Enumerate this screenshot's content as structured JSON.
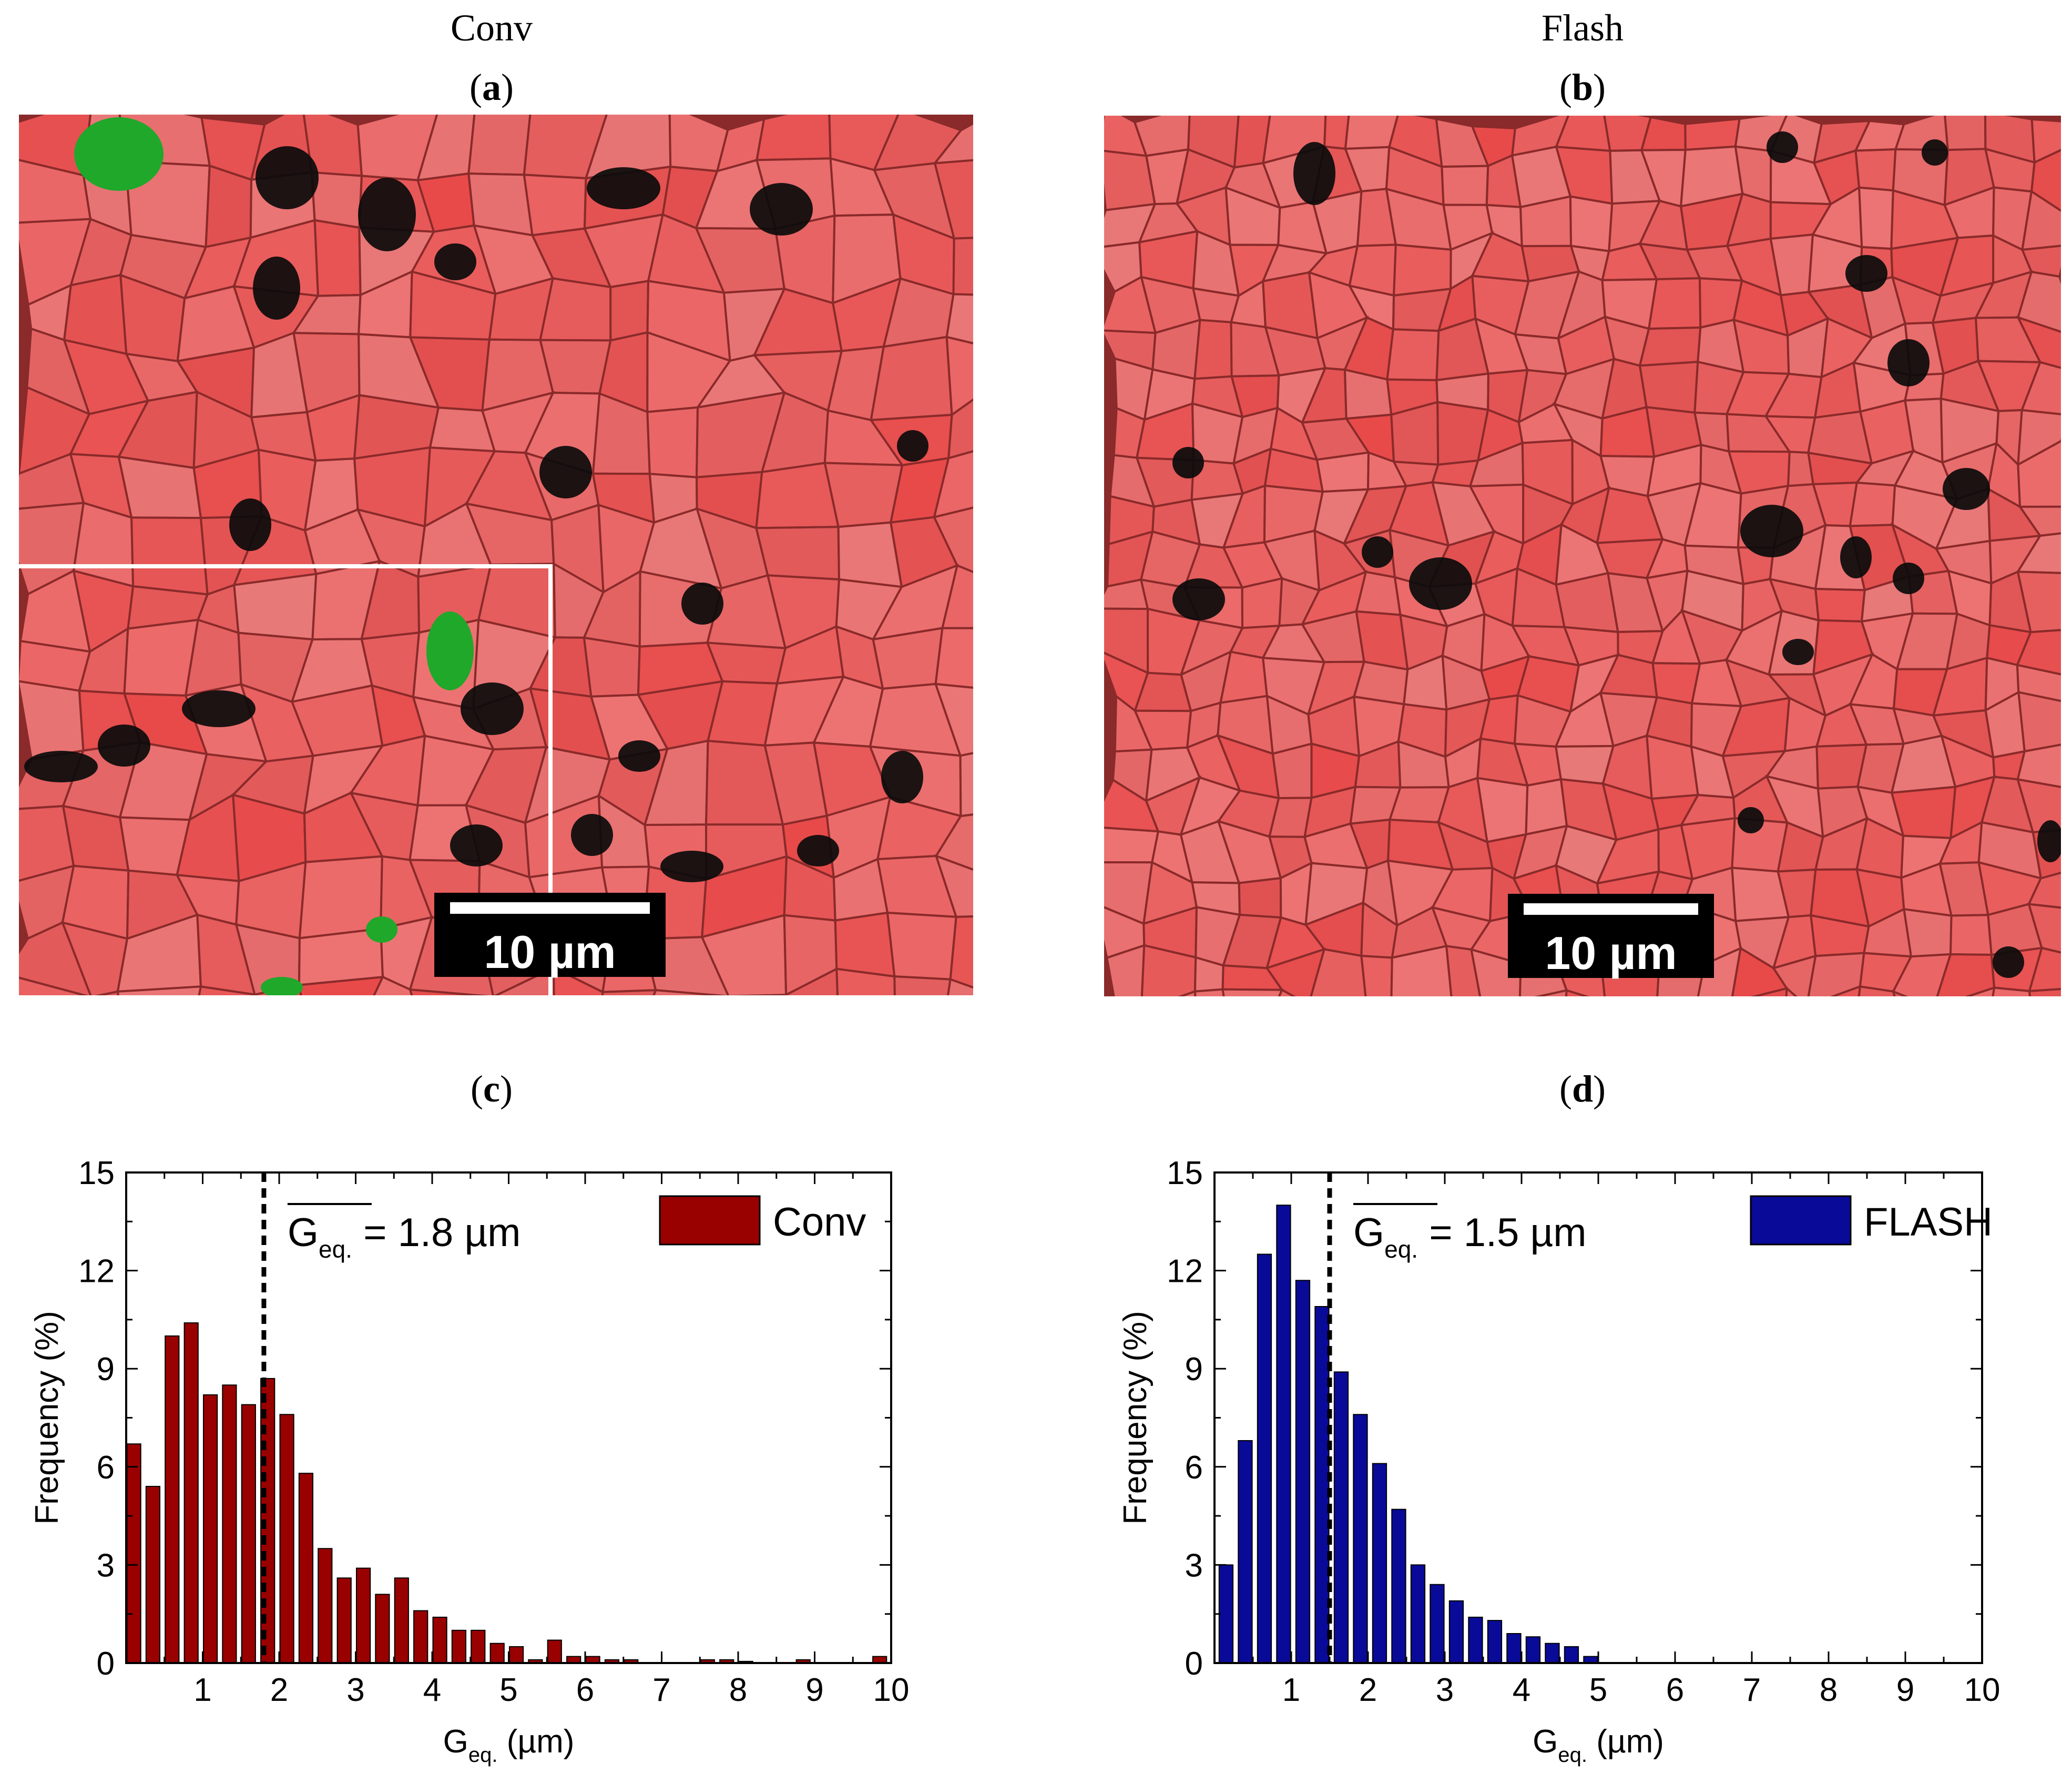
{
  "headers": {
    "left": "Conv",
    "right": "Flash"
  },
  "panels": {
    "a": {
      "prefix": "(",
      "letter": "a",
      "suffix": ")",
      "scale_label": "10 µm"
    },
    "b": {
      "prefix": "(",
      "letter": "b",
      "suffix": ")",
      "scale_label": "10 µm"
    },
    "c": {
      "prefix": "(",
      "letter": "c",
      "suffix": ")"
    },
    "d": {
      "prefix": "(",
      "letter": "d",
      "suffix": ")"
    }
  },
  "colors": {
    "grain": "#e85a5a",
    "boundary": "#8a2a2a",
    "pore": "#0b0b0b",
    "secondary_phase": "#1fa82a",
    "conv_bar": "#990000",
    "flash_bar": "#0a0a99"
  },
  "chart_data": [
    {
      "type": "bar",
      "panel": "c",
      "series_name": "Conv",
      "bar_color": "#990000",
      "xlabel_main": "G",
      "xlabel_sub": "eq.",
      "xlabel_unit": " (µm)",
      "ylabel": "Frequency (%)",
      "xlim": [
        0,
        10
      ],
      "ylim": [
        0,
        15
      ],
      "xticks": [
        1,
        2,
        3,
        4,
        5,
        6,
        7,
        8,
        9,
        10
      ],
      "yticks": [
        0,
        3,
        6,
        9,
        12,
        15
      ],
      "mean_line": 1.8,
      "mean_label_main": "G",
      "mean_label_sub": "eq.",
      "mean_label_value": " = 1.8 µm",
      "legend": "Conv",
      "x": [
        0.1,
        0.35,
        0.6,
        0.85,
        1.1,
        1.35,
        1.6,
        1.85,
        2.1,
        2.35,
        2.6,
        2.85,
        3.1,
        3.35,
        3.6,
        3.85,
        4.1,
        4.35,
        4.6,
        4.85,
        5.1,
        5.35,
        5.6,
        5.85,
        6.1,
        6.35,
        6.6,
        7.6,
        7.85,
        8.1,
        8.85,
        9.85
      ],
      "values": [
        6.7,
        5.4,
        10.0,
        10.4,
        8.2,
        8.5,
        7.9,
        8.7,
        7.6,
        5.8,
        3.5,
        2.6,
        2.9,
        2.1,
        2.6,
        1.6,
        1.4,
        1.0,
        1.0,
        0.6,
        0.5,
        0.1,
        0.7,
        0.2,
        0.2,
        0.1,
        0.1,
        0.1,
        0.1,
        0.05,
        0.1,
        0.2
      ]
    },
    {
      "type": "bar",
      "panel": "d",
      "series_name": "FLASH",
      "bar_color": "#0a0a99",
      "xlabel_main": "G",
      "xlabel_sub": "eq.",
      "xlabel_unit": " (µm)",
      "ylabel": "Frequency (%)",
      "xlim": [
        0,
        10
      ],
      "ylim": [
        0,
        15
      ],
      "xticks": [
        1,
        2,
        3,
        4,
        5,
        6,
        7,
        8,
        9,
        10
      ],
      "yticks": [
        0,
        3,
        6,
        9,
        12,
        15
      ],
      "mean_line": 1.5,
      "mean_label_main": "G",
      "mean_label_sub": "eq.",
      "mean_label_value": " = 1.5 µm",
      "legend": "FLASH",
      "x": [
        0.15,
        0.4,
        0.65,
        0.9,
        1.15,
        1.4,
        1.65,
        1.9,
        2.15,
        2.4,
        2.65,
        2.9,
        3.15,
        3.4,
        3.65,
        3.9,
        4.15,
        4.4,
        4.65,
        4.9
      ],
      "values": [
        3.0,
        6.8,
        12.5,
        14.0,
        11.7,
        10.9,
        8.9,
        7.6,
        6.1,
        4.7,
        3.0,
        2.4,
        1.9,
        1.4,
        1.3,
        0.9,
        0.8,
        0.6,
        0.5,
        0.2
      ]
    }
  ]
}
